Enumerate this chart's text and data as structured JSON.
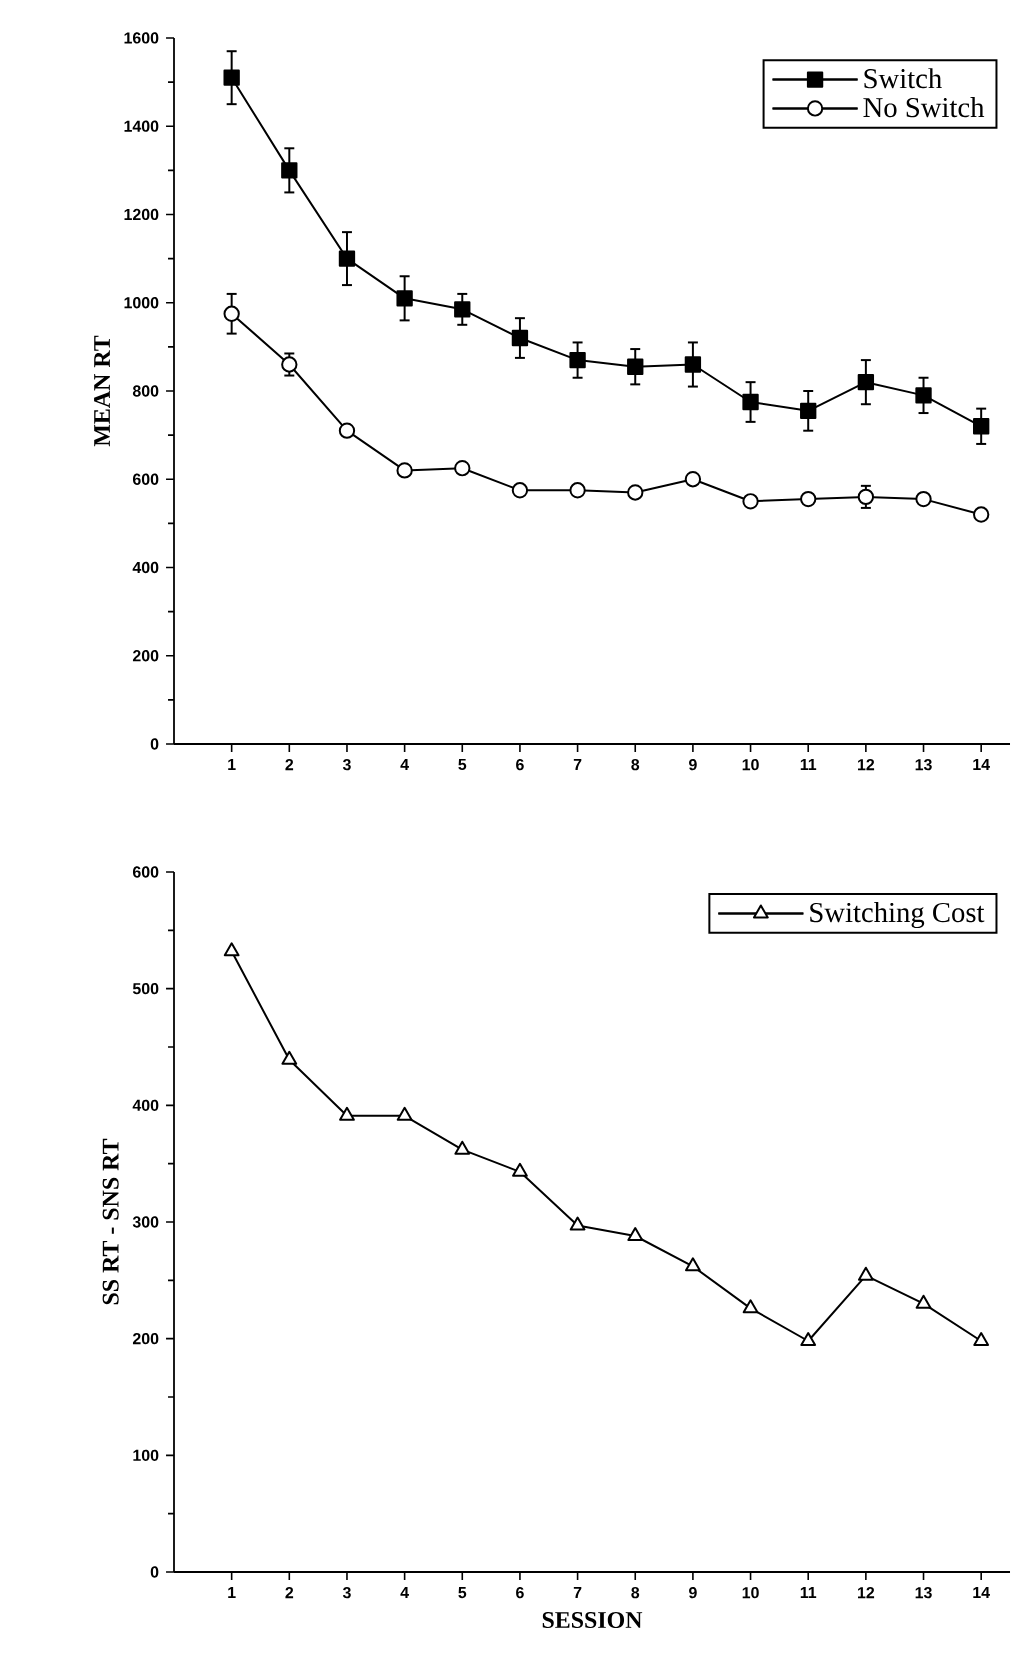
{
  "chart_data": [
    {
      "type": "line",
      "ylabel": "MEAN RT",
      "categories": [
        "1",
        "2",
        "3",
        "4",
        "5",
        "6",
        "7",
        "8",
        "9",
        "10",
        "11",
        "12",
        "13",
        "14"
      ],
      "ylim": [
        0,
        1600
      ],
      "yticks": [
        0,
        200,
        400,
        600,
        800,
        1000,
        1200,
        1400,
        1600
      ],
      "legend": "top right",
      "series": [
        {
          "name": "Switch",
          "color": "#000000",
          "marker": "square",
          "values": [
            1510,
            1300,
            1100,
            1010,
            985,
            920,
            870,
            855,
            860,
            775,
            755,
            820,
            790,
            720
          ],
          "errors": [
            60,
            50,
            60,
            50,
            35,
            45,
            40,
            40,
            50,
            45,
            45,
            50,
            40,
            40
          ]
        },
        {
          "name": "No Switch",
          "color": "#000000",
          "marker": "circle",
          "values": [
            975,
            860,
            710,
            620,
            625,
            575,
            575,
            570,
            600,
            550,
            555,
            560,
            555,
            520
          ],
          "errors": [
            45,
            25,
            null,
            null,
            null,
            null,
            null,
            null,
            null,
            null,
            null,
            25,
            null,
            null
          ]
        }
      ]
    },
    {
      "type": "line",
      "xlabel": "SESSION",
      "ylabel": "SS RT - SNS RT",
      "categories": [
        "1",
        "2",
        "3",
        "4",
        "5",
        "6",
        "7",
        "8",
        "9",
        "10",
        "11",
        "12",
        "13",
        "14"
      ],
      "ylim": [
        0,
        600
      ],
      "yticks": [
        0,
        100,
        200,
        300,
        400,
        500,
        600
      ],
      "legend": "top right",
      "series": [
        {
          "name": "Switching Cost",
          "color": "#000000",
          "marker": "triangle",
          "values": [
            532,
            439,
            391,
            391,
            362,
            343,
            297,
            288,
            262,
            226,
            198,
            254,
            230,
            198
          ]
        }
      ]
    }
  ]
}
